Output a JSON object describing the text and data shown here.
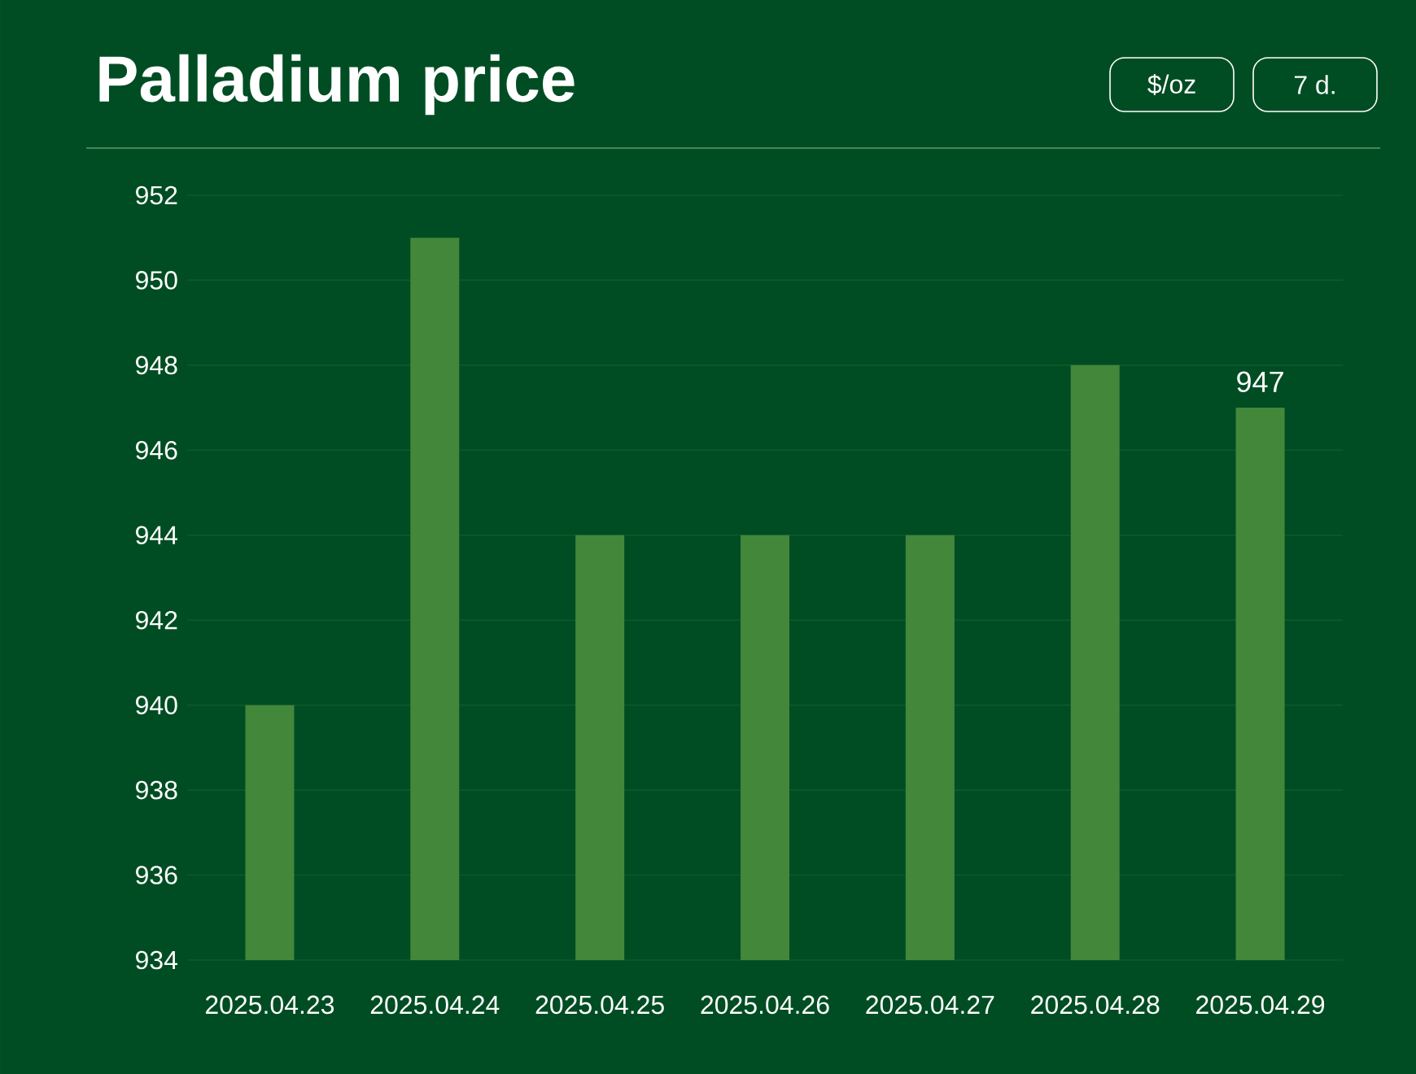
{
  "chart_data": {
    "type": "bar",
    "title": "Palladium price",
    "annotations": [
      "$/oz",
      "7 d."
    ],
    "categories": [
      "2025.04.23",
      "2025.04.24",
      "2025.04.25",
      "2025.04.26",
      "2025.04.27",
      "2025.04.28",
      "2025.04.29"
    ],
    "values": [
      940,
      951,
      944,
      944,
      944,
      948,
      947
    ],
    "value_labels": [
      null,
      null,
      null,
      null,
      null,
      null,
      "947"
    ],
    "color": "#43873b",
    "ylim": [
      934,
      952
    ],
    "yticks": [
      934,
      936,
      938,
      940,
      942,
      944,
      946,
      948,
      950,
      952
    ],
    "grid": "y"
  }
}
